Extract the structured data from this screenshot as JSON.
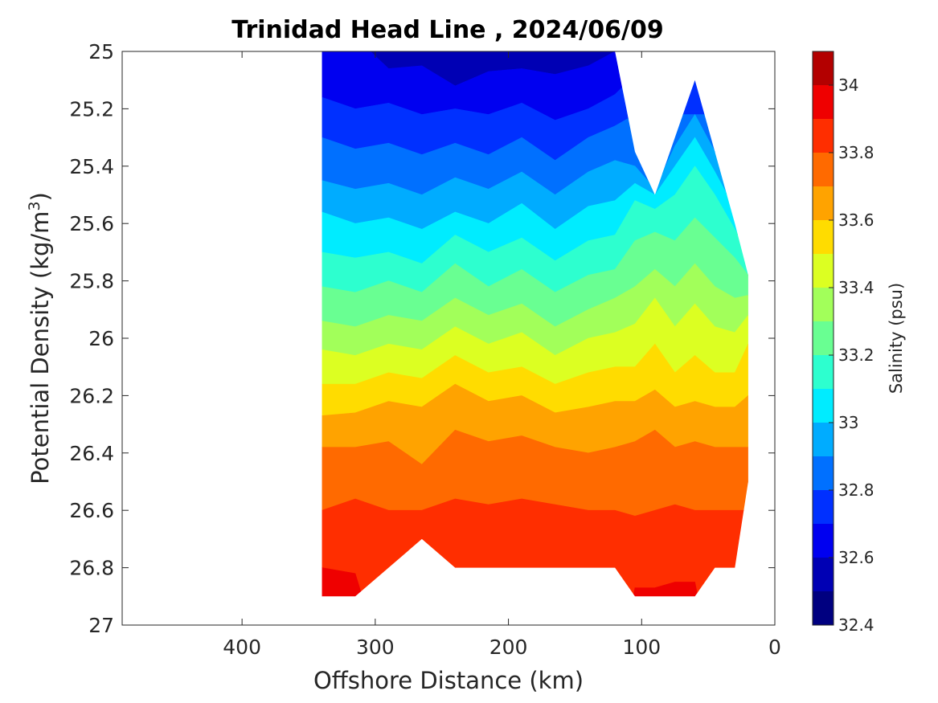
{
  "chart_data": {
    "type": "filled-contour",
    "title": "Trinidad Head Line , 2024/06/09",
    "xlabel": "Offshore Distance (km)",
    "ylabel_main": "Potential Density (kg/m",
    "ylabel_sup": "3",
    "ylabel_close": ")",
    "xlim": [
      490,
      0
    ],
    "ylim": [
      25,
      27
    ],
    "y_reversed": true,
    "x_reversed": true,
    "x_ticks": [
      400,
      300,
      200,
      100,
      0
    ],
    "x_tick_labels": [
      "400",
      "300",
      "200",
      "100",
      "0"
    ],
    "y_ticks": [
      25,
      25.2,
      25.4,
      25.6,
      25.8,
      26,
      26.2,
      26.4,
      26.6,
      26.8,
      27
    ],
    "y_tick_labels": [
      "25",
      "25.2",
      "25.4",
      "25.6",
      "25.8",
      "26",
      "26.2",
      "26.4",
      "26.6",
      "26.8",
      "27"
    ],
    "colorbar": {
      "label": "Salinity (psu)",
      "min": 32.4,
      "max": 34.1,
      "ticks": [
        32.4,
        32.6,
        32.8,
        33,
        33.2,
        33.4,
        33.6,
        33.8,
        34
      ],
      "tick_labels": [
        "32.4",
        "32.6",
        "32.8",
        "33",
        "33.2",
        "33.4",
        "33.6",
        "33.8",
        "34"
      ],
      "levels": [
        {
          "from": 32.4,
          "to": 32.5,
          "color": "#000080"
        },
        {
          "from": 32.5,
          "to": 32.6,
          "color": "#0000b4"
        },
        {
          "from": 32.6,
          "to": 32.7,
          "color": "#0000f0"
        },
        {
          "from": 32.7,
          "to": 32.8,
          "color": "#0030ff"
        },
        {
          "from": 32.8,
          "to": 32.9,
          "color": "#0070ff"
        },
        {
          "from": 32.9,
          "to": 33.0,
          "color": "#00acff"
        },
        {
          "from": 33.0,
          "to": 33.1,
          "color": "#00ecff"
        },
        {
          "from": 33.1,
          "to": 33.2,
          "color": "#2dffcf"
        },
        {
          "from": 33.2,
          "to": 33.3,
          "color": "#69ff92"
        },
        {
          "from": 33.3,
          "to": 33.4,
          "color": "#a2ff5a"
        },
        {
          "from": 33.4,
          "to": 33.5,
          "color": "#dcff22"
        },
        {
          "from": 33.5,
          "to": 33.6,
          "color": "#ffdc00"
        },
        {
          "from": 33.6,
          "to": 33.7,
          "color": "#ffa300"
        },
        {
          "from": 33.7,
          "to": 33.8,
          "color": "#ff6a00"
        },
        {
          "from": 33.8,
          "to": 33.9,
          "color": "#ff2e00"
        },
        {
          "from": 33.9,
          "to": 34.0,
          "color": "#ef0000"
        },
        {
          "from": 34.0,
          "to": 34.1,
          "color": "#b30000"
        }
      ]
    },
    "stations_x": [
      340,
      315,
      290,
      265,
      240,
      215,
      190,
      165,
      140,
      120,
      105,
      90,
      75,
      60,
      45,
      30,
      20
    ],
    "top_density": [
      25.0,
      25.0,
      25.0,
      25.0,
      25.0,
      25.0,
      25.0,
      25.0,
      25.0,
      25.0,
      25.35,
      25.5,
      25.3,
      25.1,
      25.35,
      25.6,
      25.78
    ],
    "bottom_density": [
      26.9,
      26.9,
      26.8,
      26.7,
      26.8,
      26.8,
      26.8,
      26.8,
      26.8,
      26.8,
      26.9,
      26.9,
      26.9,
      26.9,
      26.8,
      26.8,
      26.5
    ],
    "isohalines": [
      {
        "salinity": 32.6,
        "density": [
          24.95,
          24.95,
          25.06,
          25.05,
          25.12,
          25.07,
          25.06,
          25.08,
          25.05,
          25.0,
          24.95,
          24.95,
          24.95,
          24.95,
          24.95,
          24.95,
          24.95
        ]
      },
      {
        "salinity": 32.7,
        "density": [
          25.16,
          25.2,
          25.18,
          25.22,
          25.2,
          25.22,
          25.18,
          25.24,
          25.2,
          25.15,
          25.08,
          25.08,
          25.08,
          25.08,
          25.08,
          25.08,
          25.08
        ]
      },
      {
        "salinity": 32.8,
        "density": [
          25.3,
          25.34,
          25.32,
          25.36,
          25.32,
          25.36,
          25.3,
          25.38,
          25.3,
          25.26,
          25.22,
          25.22,
          25.22,
          25.22,
          25.22,
          25.22,
          25.22
        ]
      },
      {
        "salinity": 32.9,
        "density": [
          25.45,
          25.48,
          25.46,
          25.5,
          25.44,
          25.48,
          25.42,
          25.5,
          25.42,
          25.38,
          25.4,
          25.48,
          25.33,
          25.22,
          25.35,
          25.45,
          25.5
        ]
      },
      {
        "salinity": 33.0,
        "density": [
          25.56,
          25.6,
          25.58,
          25.62,
          25.56,
          25.6,
          25.53,
          25.62,
          25.54,
          25.52,
          25.46,
          25.5,
          25.4,
          25.3,
          25.42,
          25.55,
          25.62
        ]
      },
      {
        "salinity": 33.1,
        "density": [
          25.7,
          25.72,
          25.7,
          25.74,
          25.64,
          25.7,
          25.65,
          25.73,
          25.66,
          25.64,
          25.52,
          25.55,
          25.5,
          25.4,
          25.5,
          25.62,
          25.7
        ]
      },
      {
        "salinity": 33.2,
        "density": [
          25.82,
          25.84,
          25.8,
          25.84,
          25.74,
          25.82,
          25.76,
          25.84,
          25.78,
          25.76,
          25.66,
          25.63,
          25.66,
          25.58,
          25.65,
          25.72,
          25.78
        ]
      },
      {
        "salinity": 33.3,
        "density": [
          25.94,
          25.96,
          25.92,
          25.94,
          25.86,
          25.92,
          25.88,
          25.96,
          25.9,
          25.86,
          25.82,
          25.76,
          25.82,
          25.74,
          25.82,
          25.86,
          25.85
        ]
      },
      {
        "salinity": 33.4,
        "density": [
          26.04,
          26.06,
          26.02,
          26.04,
          25.96,
          26.02,
          25.98,
          26.06,
          26.0,
          25.98,
          25.95,
          25.86,
          25.96,
          25.88,
          25.96,
          25.98,
          25.92
        ]
      },
      {
        "salinity": 33.5,
        "density": [
          26.16,
          26.16,
          26.12,
          26.14,
          26.06,
          26.12,
          26.1,
          26.16,
          26.12,
          26.1,
          26.1,
          26.02,
          26.12,
          26.06,
          26.12,
          26.12,
          26.02
        ]
      },
      {
        "salinity": 33.6,
        "density": [
          26.27,
          26.26,
          26.22,
          26.24,
          26.16,
          26.22,
          26.2,
          26.26,
          26.24,
          26.22,
          26.22,
          26.18,
          26.24,
          26.22,
          26.24,
          26.24,
          26.2
        ]
      },
      {
        "salinity": 33.7,
        "density": [
          26.38,
          26.38,
          26.36,
          26.44,
          26.32,
          26.36,
          26.34,
          26.38,
          26.4,
          26.38,
          26.36,
          26.32,
          26.38,
          26.36,
          26.38,
          26.38,
          26.38
        ]
      },
      {
        "salinity": 33.8,
        "density": [
          26.6,
          26.56,
          26.6,
          26.6,
          26.56,
          26.58,
          26.56,
          26.58,
          26.6,
          26.6,
          26.62,
          26.6,
          26.58,
          26.6,
          26.6,
          26.6,
          26.6
        ]
      },
      {
        "salinity": 33.9,
        "density": [
          26.8,
          26.82,
          27.2,
          27.2,
          27.2,
          27.2,
          27.2,
          27.2,
          27.2,
          27.2,
          26.87,
          26.87,
          26.85,
          26.85,
          27.2,
          27.2,
          27.2
        ]
      }
    ]
  }
}
